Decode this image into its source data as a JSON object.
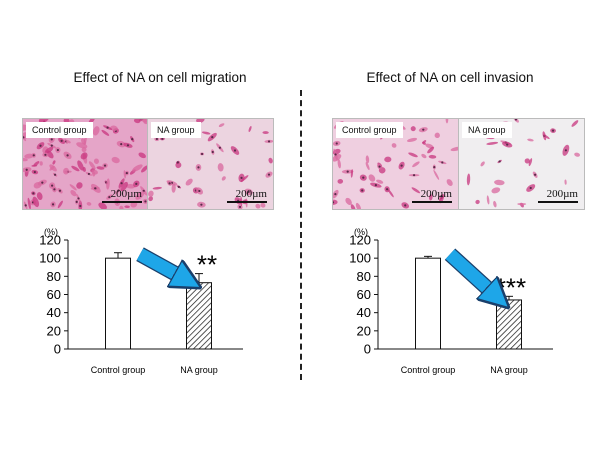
{
  "divider_style": "dashed",
  "panels": [
    {
      "title": "Effect of NA on cell migration",
      "images": [
        {
          "label": "Control group",
          "scale": "200µm",
          "tint": "#e5a5c8",
          "density": "high"
        },
        {
          "label": "NA group",
          "scale": "200µm",
          "tint": "#ecd4e0",
          "density": "low"
        }
      ]
    },
    {
      "title": "Effect of NA on cell invasion",
      "images": [
        {
          "label": "Control group",
          "scale": "200µm",
          "tint": "#efcfe0",
          "density": "medium"
        },
        {
          "label": "NA group",
          "scale": "200µm",
          "tint": "#f0eef0",
          "density": "sparse"
        }
      ]
    }
  ],
  "chart_data": [
    {
      "type": "bar",
      "title": "",
      "ylabel": "(%)",
      "ylim": [
        0,
        120
      ],
      "yticks": [
        0,
        20,
        40,
        60,
        80,
        100,
        120
      ],
      "categories": [
        "Control group",
        "NA group"
      ],
      "values": [
        100,
        73
      ],
      "errors": [
        6,
        10
      ],
      "significance": [
        "",
        "**"
      ],
      "bar_fills": [
        "white",
        "hatched"
      ],
      "arrow": "from Control group to NA group",
      "arrow_color": "#1ea6e8"
    },
    {
      "type": "bar",
      "title": "",
      "ylabel": "(%)",
      "ylim": [
        0,
        120
      ],
      "yticks": [
        0,
        20,
        40,
        60,
        80,
        100,
        120
      ],
      "categories": [
        "Control group",
        "NA group"
      ],
      "values": [
        100,
        54
      ],
      "errors": [
        2,
        4
      ],
      "significance": [
        "",
        "***"
      ],
      "bar_fills": [
        "white",
        "hatched"
      ],
      "arrow": "from Control group to NA group",
      "arrow_color": "#1ea6e8"
    }
  ]
}
